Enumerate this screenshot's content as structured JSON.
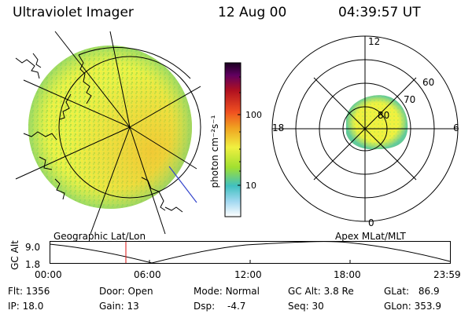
{
  "header": {
    "title": "Ultraviolet Imager",
    "date": "12 Aug 00",
    "time": "04:39:57 UT"
  },
  "left_panel": {
    "label": "Geographic Lat/Lon"
  },
  "colorbar": {
    "unit_label": "photon cm⁻²s⁻¹",
    "ticks": [
      "100",
      "10"
    ],
    "scale": "log"
  },
  "right_panel": {
    "label": "Apex MLat/MLT",
    "mlt_labels": {
      "top": "12",
      "bottom": "0",
      "left": "18",
      "right": "6"
    },
    "lat_labels": [
      "60",
      "70",
      "80"
    ]
  },
  "altitude_plot": {
    "ylabel": "GC Alt",
    "yticks": [
      "9.0",
      "1.8"
    ],
    "xticks": [
      "00:00",
      "06:00",
      "12:00",
      "18:00",
      "23:59"
    ],
    "current_time_marker": "04:39:57"
  },
  "info": {
    "flt_label": "Flt:",
    "flt": "1356",
    "door_label": "Door:",
    "door": "Open",
    "mode_label": "Mode:",
    "mode": "Normal",
    "gcalt_label": "GC Alt:",
    "gcalt": "3.8 Re",
    "glat_label": "GLat:",
    "glat": "86.9",
    "ip_label": "IP:",
    "ip": "18.0",
    "gain_label": "Gain:",
    "gain": "13",
    "dsp_label": "Dsp:",
    "dsp": "-4.7",
    "seq_label": "Seq:",
    "seq": "30",
    "glon_label": "GLon:",
    "glon": "353.9"
  },
  "colors": {
    "image_green": "#c8f04a",
    "image_yellow": "#f6f640",
    "image_orange": "#f0c028",
    "marker_red": "#dd1111",
    "line_blue": "#3344cc"
  }
}
